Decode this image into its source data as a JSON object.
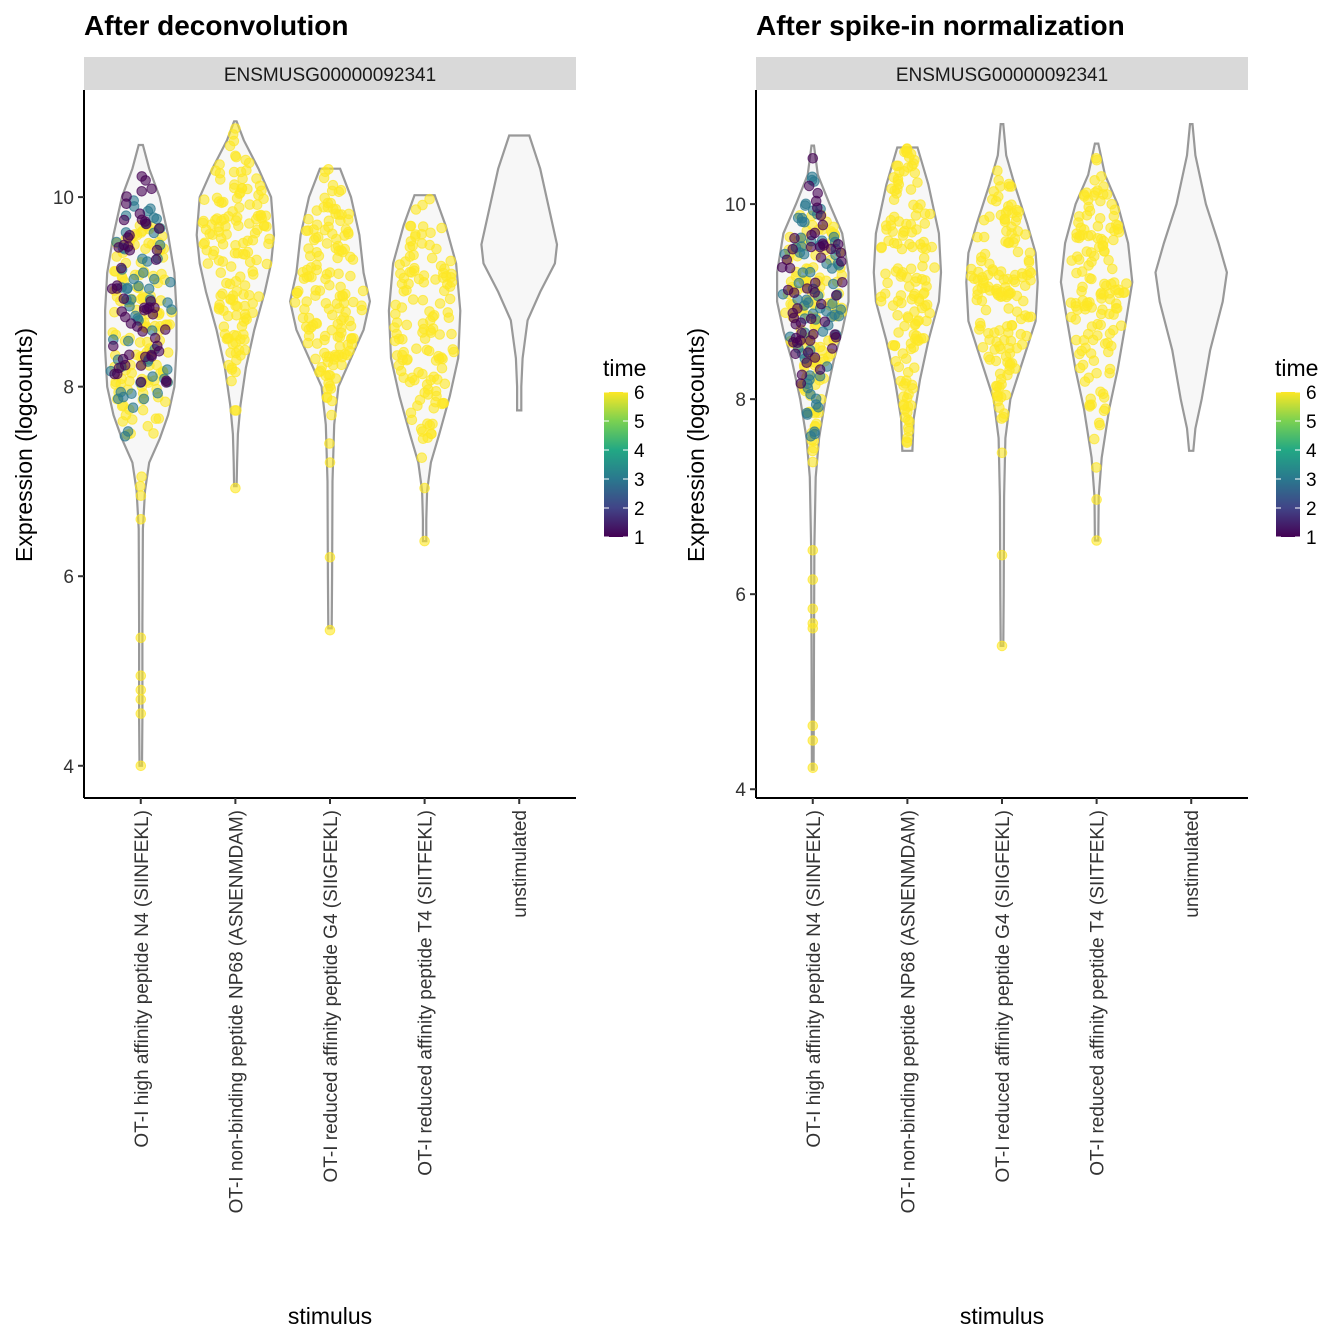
{
  "chart_data": [
    {
      "type": "violin",
      "title": "After deconvolution",
      "facet_label": "ENSMUSG00000092341",
      "xlabel": "stimulus",
      "ylabel": "Expression (logcounts)",
      "ylim": [
        3.66,
        11.13
      ],
      "yticks": [
        4,
        6,
        8,
        10
      ],
      "categories": [
        "OT-I high affinity peptide N4 (SIINFEKL)",
        "OT-I non-binding peptide NP68 (ASNENMDAM)",
        "OT-I reduced affinity peptide G4 (SIIGFEKL)",
        "OT-I reduced affinity peptide T4 (SIITFEKL)",
        "unstimulated"
      ],
      "legend": {
        "title": "time",
        "ticks": [
          1,
          2,
          3,
          4,
          5,
          6
        ],
        "placement": "right"
      },
      "violins": [
        {
          "profile": [
            [
              10.55,
              0.05
            ],
            [
              10.3,
              0.2
            ],
            [
              10.0,
              0.45
            ],
            [
              9.6,
              0.65
            ],
            [
              9.2,
              0.8
            ],
            [
              8.8,
              0.85
            ],
            [
              8.4,
              0.85
            ],
            [
              8.0,
              0.8
            ],
            [
              7.7,
              0.65
            ],
            [
              7.45,
              0.45
            ],
            [
              7.2,
              0.2
            ],
            [
              6.9,
              0.1
            ],
            [
              6.5,
              0.05
            ],
            [
              5.5,
              0.04
            ],
            [
              4.5,
              0.04
            ],
            [
              4.0,
              0.03
            ]
          ],
          "point_groups": [
            {
              "time": 1,
              "n": 55,
              "range": [
                8.0,
                10.6
              ]
            },
            {
              "time": 3,
              "n": 60,
              "range": [
                7.45,
                10.0
              ]
            },
            {
              "time": 6,
              "n": 130,
              "range": [
                7.45,
                9.7
              ]
            }
          ],
          "tail_points": [
            {
              "time": 6,
              "y": [
                7.05,
                6.95,
                6.85,
                6.6,
                5.35,
                4.95,
                4.8,
                4.7,
                4.55,
                4.0
              ]
            }
          ]
        },
        {
          "profile": [
            [
              10.8,
              0.03
            ],
            [
              10.6,
              0.2
            ],
            [
              10.3,
              0.55
            ],
            [
              10.0,
              0.85
            ],
            [
              9.6,
              0.92
            ],
            [
              9.3,
              0.85
            ],
            [
              9.0,
              0.7
            ],
            [
              8.6,
              0.45
            ],
            [
              8.2,
              0.25
            ],
            [
              7.8,
              0.12
            ],
            [
              7.5,
              0.06
            ],
            [
              7.2,
              0.04
            ],
            [
              6.95,
              0.03
            ]
          ],
          "point_groups": [
            {
              "time": 6,
              "n": 150,
              "range": [
                7.9,
                10.8
              ]
            }
          ],
          "tail_points": [
            {
              "time": 6,
              "y": [
                7.75,
                7.75,
                6.93
              ]
            }
          ]
        },
        {
          "profile": [
            [
              10.3,
              0.24
            ],
            [
              10.0,
              0.5
            ],
            [
              9.6,
              0.7
            ],
            [
              9.2,
              0.8
            ],
            [
              8.9,
              0.95
            ],
            [
              8.6,
              0.8
            ],
            [
              8.3,
              0.5
            ],
            [
              8.0,
              0.2
            ],
            [
              7.6,
              0.1
            ],
            [
              7.0,
              0.06
            ],
            [
              6.0,
              0.05
            ],
            [
              5.45,
              0.04
            ]
          ],
          "point_groups": [
            {
              "time": 6,
              "n": 150,
              "range": [
                7.8,
                10.3
              ]
            }
          ],
          "tail_points": [
            {
              "time": 6,
              "y": [
                7.7,
                7.4,
                7.2,
                6.2,
                5.43
              ]
            }
          ]
        },
        {
          "profile": [
            [
              10.02,
              0.24
            ],
            [
              9.7,
              0.5
            ],
            [
              9.3,
              0.75
            ],
            [
              8.8,
              0.85
            ],
            [
              8.3,
              0.8
            ],
            [
              7.9,
              0.6
            ],
            [
              7.5,
              0.35
            ],
            [
              7.2,
              0.15
            ],
            [
              6.9,
              0.06
            ],
            [
              6.6,
              0.04
            ],
            [
              6.37,
              0.04
            ]
          ],
          "point_groups": [
            {
              "time": 6,
              "n": 130,
              "range": [
                7.4,
                10.05
              ]
            }
          ],
          "tail_points": [
            {
              "time": 6,
              "y": [
                7.25,
                6.93,
                6.37
              ]
            }
          ]
        },
        {
          "profile": [
            [
              10.65,
              0.24
            ],
            [
              10.3,
              0.5
            ],
            [
              9.9,
              0.7
            ],
            [
              9.5,
              0.9
            ],
            [
              9.3,
              0.85
            ],
            [
              9.0,
              0.5
            ],
            [
              8.7,
              0.2
            ],
            [
              8.3,
              0.08
            ],
            [
              8.0,
              0.05
            ],
            [
              7.75,
              0.05
            ]
          ],
          "point_groups": [],
          "tail_points": []
        }
      ]
    },
    {
      "type": "violin",
      "title": "After spike-in normalization",
      "facet_label": "ENSMUSG00000092341",
      "xlabel": "stimulus",
      "ylabel": "Expression (logcounts)",
      "ylim": [
        3.91,
        11.17
      ],
      "yticks": [
        4,
        6,
        8,
        10
      ],
      "categories": [
        "OT-I high affinity peptide N4 (SIINFEKL)",
        "OT-I non-binding peptide NP68 (ASNENMDAM)",
        "OT-I reduced affinity peptide G4 (SIIGFEKL)",
        "OT-I reduced affinity peptide T4 (SIITFEKL)",
        "unstimulated"
      ],
      "legend": {
        "title": "time",
        "ticks": [
          1,
          2,
          3,
          4,
          5,
          6
        ],
        "placement": "right"
      },
      "violins": [
        {
          "profile": [
            [
              10.6,
              0.03
            ],
            [
              10.3,
              0.12
            ],
            [
              10.0,
              0.4
            ],
            [
              9.7,
              0.7
            ],
            [
              9.3,
              0.85
            ],
            [
              9.0,
              0.85
            ],
            [
              8.7,
              0.7
            ],
            [
              8.4,
              0.5
            ],
            [
              8.0,
              0.3
            ],
            [
              7.6,
              0.15
            ],
            [
              7.2,
              0.07
            ],
            [
              6.5,
              0.04
            ],
            [
              5.5,
              0.03
            ],
            [
              4.2,
              0.02
            ]
          ],
          "point_groups": [
            {
              "time": 1,
              "n": 55,
              "range": [
                8.0,
                10.6
              ]
            },
            {
              "time": 3,
              "n": 75,
              "range": [
                7.6,
                10.4
              ]
            },
            {
              "time": 6,
              "n": 130,
              "range": [
                7.2,
                9.9
              ]
            }
          ],
          "tail_points": [
            {
              "time": 6,
              "y": [
                6.45,
                6.15,
                5.85,
                5.7,
                5.65,
                4.65,
                4.5,
                4.22
              ]
            }
          ]
        },
        {
          "profile": [
            [
              10.58,
              0.24
            ],
            [
              10.2,
              0.5
            ],
            [
              9.7,
              0.75
            ],
            [
              9.3,
              0.8
            ],
            [
              9.0,
              0.75
            ],
            [
              8.6,
              0.5
            ],
            [
              8.2,
              0.3
            ],
            [
              7.8,
              0.15
            ],
            [
              7.47,
              0.12
            ]
          ],
          "point_groups": [
            {
              "time": 6,
              "n": 150,
              "range": [
                7.5,
                10.58
              ]
            }
          ],
          "tail_points": []
        },
        {
          "profile": [
            [
              10.82,
              0.03
            ],
            [
              10.5,
              0.1
            ],
            [
              10.2,
              0.3
            ],
            [
              9.8,
              0.6
            ],
            [
              9.5,
              0.8
            ],
            [
              9.2,
              0.85
            ],
            [
              8.8,
              0.8
            ],
            [
              8.4,
              0.5
            ],
            [
              8.0,
              0.2
            ],
            [
              7.6,
              0.08
            ],
            [
              7.0,
              0.05
            ],
            [
              6.0,
              0.04
            ],
            [
              5.47,
              0.03
            ]
          ],
          "point_groups": [
            {
              "time": 6,
              "n": 150,
              "range": [
                7.8,
                10.82
              ]
            }
          ],
          "tail_points": [
            {
              "time": 6,
              "y": [
                7.8,
                7.45,
                6.4,
                5.47
              ]
            }
          ]
        },
        {
          "profile": [
            [
              10.62,
              0.04
            ],
            [
              10.3,
              0.2
            ],
            [
              10.0,
              0.5
            ],
            [
              9.6,
              0.75
            ],
            [
              9.2,
              0.85
            ],
            [
              8.8,
              0.7
            ],
            [
              8.3,
              0.5
            ],
            [
              7.9,
              0.3
            ],
            [
              7.4,
              0.12
            ],
            [
              7.0,
              0.05
            ],
            [
              6.55,
              0.04
            ]
          ],
          "point_groups": [
            {
              "time": 6,
              "n": 140,
              "range": [
                7.5,
                10.62
              ]
            }
          ],
          "tail_points": [
            {
              "time": 6,
              "y": [
                7.3,
                6.97,
                6.55
              ]
            }
          ]
        },
        {
          "profile": [
            [
              10.82,
              0.03
            ],
            [
              10.5,
              0.1
            ],
            [
              10.0,
              0.35
            ],
            [
              9.6,
              0.65
            ],
            [
              9.3,
              0.85
            ],
            [
              9.0,
              0.75
            ],
            [
              8.5,
              0.45
            ],
            [
              8.0,
              0.25
            ],
            [
              7.7,
              0.1
            ],
            [
              7.47,
              0.05
            ]
          ],
          "point_groups": [],
          "tail_points": []
        }
      ]
    }
  ],
  "colors": {
    "violin_fill": "#f7f7f7",
    "violin_stroke": "#999999",
    "strip_bg": "#d9d9d9",
    "time_scale": [
      "#440154",
      "#414487",
      "#2a788e",
      "#22a884",
      "#7ad151",
      "#fde725"
    ]
  }
}
